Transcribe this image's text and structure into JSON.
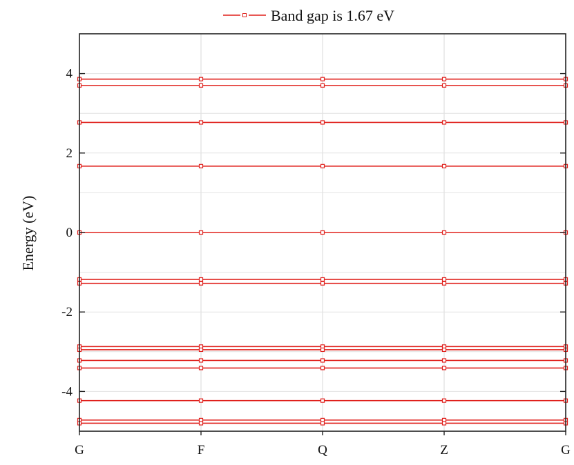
{
  "chart_data": {
    "type": "line",
    "title": "",
    "xlabel": "",
    "ylabel": "Energy (eV)",
    "x_categories": [
      "G",
      "F",
      "Q",
      "Z",
      "G"
    ],
    "ylim": [
      -5,
      5
    ],
    "y_ticks": [
      -4,
      -2,
      0,
      2,
      4
    ],
    "grid": true,
    "legend": {
      "position": "top-center",
      "label": "Band gap is 1.67 eV",
      "marker": "open-square"
    },
    "line_color": "#e0201c",
    "bands": [
      {
        "values": [
          3.86,
          3.86,
          3.86,
          3.86,
          3.86
        ]
      },
      {
        "values": [
          3.7,
          3.7,
          3.7,
          3.7,
          3.7
        ]
      },
      {
        "values": [
          2.77,
          2.77,
          2.77,
          2.77,
          2.77
        ]
      },
      {
        "values": [
          1.67,
          1.67,
          1.67,
          1.67,
          1.67
        ]
      },
      {
        "values": [
          0.0,
          0.0,
          0.0,
          0.0,
          0.0
        ]
      },
      {
        "values": [
          -1.18,
          -1.18,
          -1.18,
          -1.18,
          -1.18
        ]
      },
      {
        "values": [
          -1.28,
          -1.28,
          -1.28,
          -1.28,
          -1.28
        ]
      },
      {
        "values": [
          -2.87,
          -2.87,
          -2.87,
          -2.87,
          -2.87
        ]
      },
      {
        "values": [
          -2.95,
          -2.95,
          -2.95,
          -2.95,
          -2.95
        ]
      },
      {
        "values": [
          -3.22,
          -3.22,
          -3.22,
          -3.22,
          -3.22
        ]
      },
      {
        "values": [
          -3.41,
          -3.41,
          -3.41,
          -3.41,
          -3.41
        ]
      },
      {
        "values": [
          -4.23,
          -4.23,
          -4.23,
          -4.23,
          -4.23
        ]
      },
      {
        "values": [
          -4.72,
          -4.72,
          -4.72,
          -4.72,
          -4.72
        ]
      },
      {
        "values": [
          -4.8,
          -4.8,
          -4.8,
          -4.8,
          -4.8
        ]
      }
    ]
  }
}
